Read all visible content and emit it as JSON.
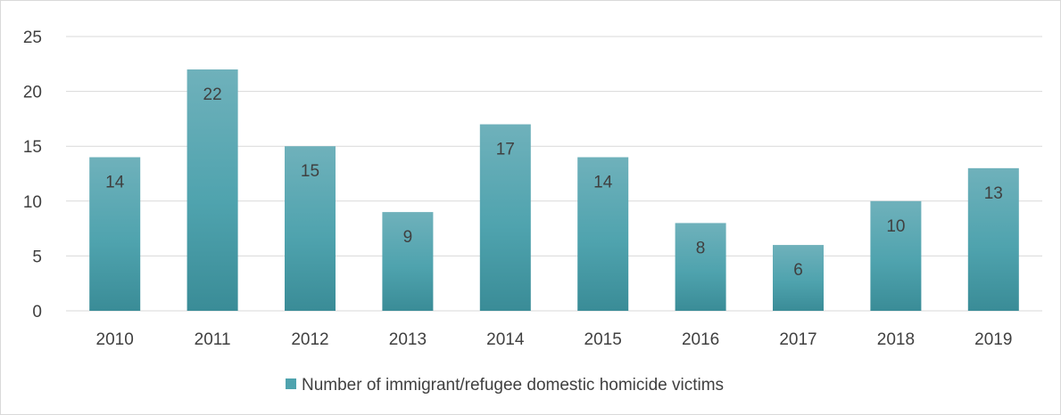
{
  "chart_data": {
    "type": "bar",
    "categories": [
      "2010",
      "2011",
      "2012",
      "2013",
      "2014",
      "2015",
      "2016",
      "2017",
      "2018",
      "2019"
    ],
    "series": [
      {
        "name": "Number of immigrant/refugee domestic homicide victims",
        "values": [
          14,
          22,
          15,
          9,
          17,
          14,
          8,
          6,
          10,
          13
        ]
      }
    ],
    "title": "",
    "xlabel": "",
    "ylabel": "",
    "ylim": [
      0,
      25
    ],
    "yticks": [
      0,
      5,
      10,
      15,
      20,
      25
    ],
    "grid": true,
    "data_labels": true,
    "legend_position": "bottom",
    "colors": {
      "bar_light": "#6fb1bb",
      "bar_mid": "#4fa3ae",
      "bar_dark": "#3a8c97",
      "grid": "#d9d9d9",
      "text": "#404040"
    }
  }
}
